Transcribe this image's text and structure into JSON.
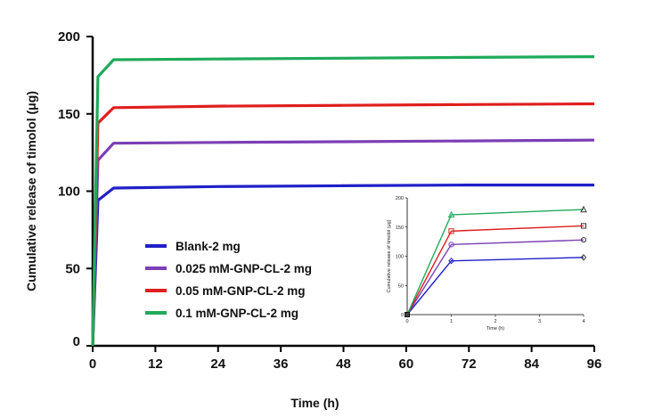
{
  "chart_data": [
    {
      "type": "line",
      "xlabel": "Time (h)",
      "ylabel": "Cumulative release of timolol (μg)",
      "xlim": [
        0,
        96
      ],
      "ylim": [
        0,
        200
      ],
      "xticks": [
        "0",
        "12",
        "24",
        "36",
        "48",
        "60",
        "72",
        "84",
        "96"
      ],
      "yticks": [
        "0",
        "50",
        "100",
        "150",
        "200"
      ],
      "legend": "center-left",
      "grid": false,
      "series": [
        {
          "name": "Blank-2 mg",
          "color": "#1f1fc8",
          "x": [
            0,
            1,
            4,
            24,
            48,
            72,
            96
          ],
          "y": [
            0,
            94,
            102,
            103,
            103.5,
            104,
            104
          ]
        },
        {
          "name": "0.025 mM-GNP-CL-2 mg",
          "color": "#7b3fb5",
          "x": [
            0,
            1,
            4,
            24,
            48,
            72,
            96
          ],
          "y": [
            0,
            120,
            131,
            131.5,
            132,
            132.5,
            133
          ]
        },
        {
          "name": "0.05 mM-GNP-CL-2 mg",
          "color": "#e01e1e",
          "x": [
            0,
            1,
            4,
            24,
            48,
            72,
            96
          ],
          "y": [
            0,
            144,
            154,
            155,
            155.5,
            156,
            156.5
          ]
        },
        {
          "name": "0.1 mM-GNP-CL-2 mg",
          "color": "#1faa5a",
          "x": [
            0,
            1,
            4,
            24,
            48,
            72,
            96
          ],
          "y": [
            0,
            174,
            185,
            185.5,
            186,
            186.5,
            187
          ]
        }
      ]
    },
    {
      "type": "line",
      "xlabel": "Time (h)",
      "ylabel": "Cumulative release of timolol (μg)",
      "xlim": [
        0,
        4
      ],
      "ylim": [
        0,
        200
      ],
      "xticks": [
        "0",
        "1",
        "2",
        "3",
        "4"
      ],
      "yticks": [
        "0",
        "50",
        "100",
        "150",
        "200"
      ],
      "grid": false,
      "series": [
        {
          "color": "#1f1fc8",
          "marker": "diamond",
          "x": [
            0,
            1,
            4
          ],
          "y": [
            0,
            92,
            98
          ]
        },
        {
          "color": "#7b3fb5",
          "marker": "circle",
          "x": [
            0,
            1,
            4
          ],
          "y": [
            0,
            120,
            128
          ]
        },
        {
          "color": "#e01e1e",
          "marker": "square",
          "x": [
            0,
            1,
            4
          ],
          "y": [
            0,
            143,
            152
          ]
        },
        {
          "color": "#1faa5a",
          "marker": "triangle",
          "x": [
            0,
            1,
            4
          ],
          "y": [
            0,
            171,
            180
          ]
        }
      ]
    }
  ]
}
